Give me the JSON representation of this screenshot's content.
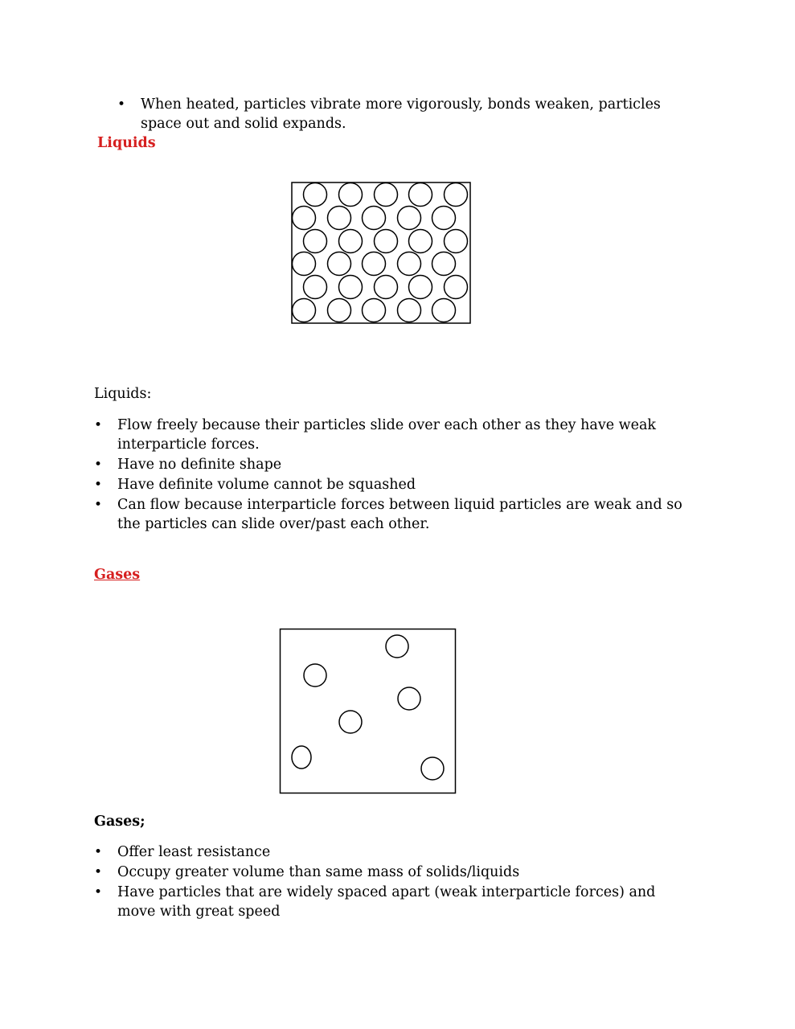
{
  "intro_bullets": [
    "When heated, particles vibrate more vigorously, bonds weaken, particles space out and solid expands."
  ],
  "liquids_section": {
    "heading": "Liquids",
    "heading_color": "#d61f1f",
    "diagram_icon": "liquid-particles-closely-packed",
    "label": "Liquids:",
    "bullets": [
      "Flow freely because their particles slide over each other as they have weak interparticle forces.",
      "Have no definite shape",
      "Have definite volume cannot be squashed",
      "Can flow because interparticle forces between liquid particles are weak and so the particles can slide over/past each other."
    ]
  },
  "gases_section": {
    "heading": "Gases",
    "heading_color": "#d61f1f",
    "diagram_icon": "gas-particles-widely-spaced",
    "label": "Gases;",
    "bullets": [
      "Offer least resistance",
      "Occupy greater volume than same mass of solids/liquids",
      "Have particles that are widely spaced apart (weak interparticle forces) and move with great speed"
    ]
  }
}
